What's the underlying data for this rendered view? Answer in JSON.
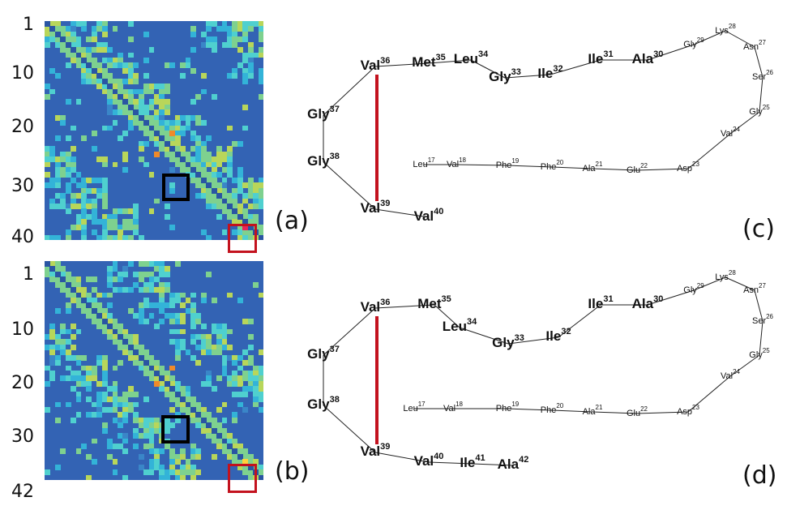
{
  "panels": {
    "a": {
      "label": "(a)",
      "ticks": [
        "1",
        "10",
        "20",
        "30",
        "40"
      ],
      "highlight_colors": {
        "black": "#000000",
        "red": "#c3121e"
      }
    },
    "b": {
      "label": "(b)",
      "ticks": [
        "1",
        "10",
        "20",
        "30",
        "42"
      ],
      "highlight_colors": {
        "black": "#000000",
        "red": "#c3121e"
      }
    },
    "c": {
      "label": "(c)",
      "residues": {
        "Val36": {
          "name": "Val",
          "num": "36"
        },
        "Met35": {
          "name": "Met",
          "num": "35"
        },
        "Leu34": {
          "name": "Leu",
          "num": "34"
        },
        "Gly33": {
          "name": "Gly",
          "num": "33"
        },
        "Ile32": {
          "name": "Ile",
          "num": "32"
        },
        "Ile31": {
          "name": "Ile",
          "num": "31"
        },
        "Ala30": {
          "name": "Ala",
          "num": "30"
        },
        "Gly29": {
          "name": "Gly",
          "num": "29"
        },
        "Lys28": {
          "name": "Lys",
          "num": "28"
        },
        "Asn27": {
          "name": "Asn",
          "num": "27"
        },
        "Ser26": {
          "name": "Ser",
          "num": "26"
        },
        "Gly25": {
          "name": "Gly",
          "num": "25"
        },
        "Val24": {
          "name": "Val",
          "num": "24"
        },
        "Asp23": {
          "name": "Asp",
          "num": "23"
        },
        "Glu22": {
          "name": "Glu",
          "num": "22"
        },
        "Ala21": {
          "name": "Ala",
          "num": "21"
        },
        "Phe20": {
          "name": "Phe",
          "num": "20"
        },
        "Phe19": {
          "name": "Phe",
          "num": "19"
        },
        "Val18": {
          "name": "Val",
          "num": "18"
        },
        "Leu17": {
          "name": "Leu",
          "num": "17"
        },
        "Gly37": {
          "name": "Gly",
          "num": "37"
        },
        "Gly38": {
          "name": "Gly",
          "num": "38"
        },
        "Val39": {
          "name": "Val",
          "num": "39"
        },
        "Val40": {
          "name": "Val",
          "num": "40"
        }
      }
    },
    "d": {
      "label": "(d)",
      "residues": {
        "Val36": {
          "name": "Val",
          "num": "36"
        },
        "Met35": {
          "name": "Met",
          "num": "35"
        },
        "Leu34": {
          "name": "Leu",
          "num": "34"
        },
        "Gly33": {
          "name": "Gly",
          "num": "33"
        },
        "Ile32": {
          "name": "Ile",
          "num": "32"
        },
        "Ile31": {
          "name": "Ile",
          "num": "31"
        },
        "Ala30": {
          "name": "Ala",
          "num": "30"
        },
        "Gly29": {
          "name": "Gly",
          "num": "29"
        },
        "Lys28": {
          "name": "Lys",
          "num": "28"
        },
        "Asn27": {
          "name": "Asn",
          "num": "27"
        },
        "Ser26": {
          "name": "Ser",
          "num": "26"
        },
        "Gly25": {
          "name": "Gly",
          "num": "25"
        },
        "Val24": {
          "name": "Val",
          "num": "24"
        },
        "Asp23": {
          "name": "Asp",
          "num": "23"
        },
        "Glu22": {
          "name": "Glu",
          "num": "22"
        },
        "Ala21": {
          "name": "Ala",
          "num": "21"
        },
        "Phe20": {
          "name": "Phe",
          "num": "20"
        },
        "Phe19": {
          "name": "Phe",
          "num": "19"
        },
        "Val18": {
          "name": "Val",
          "num": "18"
        },
        "Leu17": {
          "name": "Leu",
          "num": "17"
        },
        "Gly37": {
          "name": "Gly",
          "num": "37"
        },
        "Gly38": {
          "name": "Gly",
          "num": "38"
        },
        "Val39": {
          "name": "Val",
          "num": "39"
        },
        "Val40": {
          "name": "Val",
          "num": "40"
        },
        "Ile41": {
          "name": "Ile",
          "num": "41"
        },
        "Ala42": {
          "name": "Ala",
          "num": "42"
        }
      }
    }
  },
  "colors": {
    "map_background": "#3363b4",
    "red_contact": "#d8262b",
    "blue_contact": "#3b4fc0",
    "green_contact": "#3faa2a",
    "pink_contact": "#d54aa8",
    "backbone": "#222222"
  }
}
